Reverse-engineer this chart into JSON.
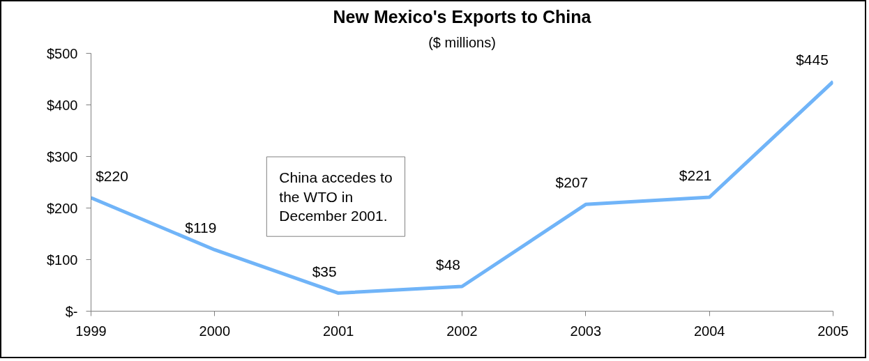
{
  "chart_data": {
    "type": "line",
    "title": "New Mexico's Exports to China",
    "subtitle": "($ millions)",
    "categories": [
      "1999",
      "2000",
      "2001",
      "2002",
      "2003",
      "2004",
      "2005"
    ],
    "series": [
      {
        "color": "#70b4f8",
        "values": [
          220,
          119,
          35,
          48,
          207,
          221,
          445
        ],
        "value_labels": [
          "$220",
          "$119",
          "$35",
          "$48",
          "$207",
          "$221",
          "$445"
        ]
      }
    ],
    "ylim": [
      0,
      500
    ],
    "yticks": [
      {
        "value": 0,
        "label": "$-"
      },
      {
        "value": 100,
        "label": "$100"
      },
      {
        "value": 200,
        "label": "$200"
      },
      {
        "value": 300,
        "label": "$300"
      },
      {
        "value": 400,
        "label": "$400"
      },
      {
        "value": 500,
        "label": "$500"
      }
    ],
    "annotations": [
      "China accedes to\nthe WTO in\nDecember 2001."
    ],
    "grid": false,
    "marker": "none",
    "line_style": "solid"
  }
}
